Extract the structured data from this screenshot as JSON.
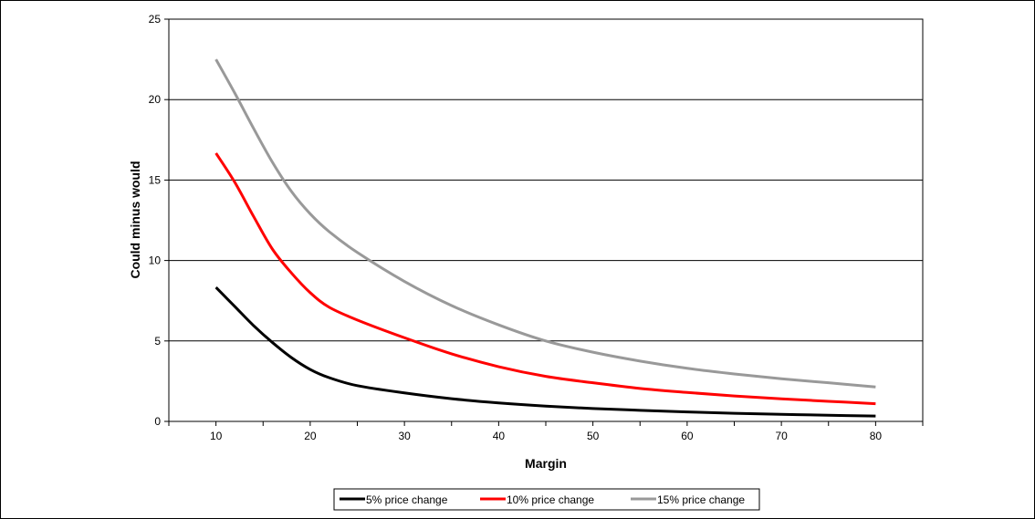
{
  "chart_data": {
    "type": "line",
    "title": "",
    "xlabel": "Margin",
    "ylabel": "Could minus would",
    "xlim": [
      5,
      85
    ],
    "ylim": [
      0,
      25
    ],
    "x_ticks": [
      10,
      20,
      30,
      40,
      50,
      60,
      70,
      80
    ],
    "y_ticks": [
      0,
      5,
      10,
      15,
      20,
      25
    ],
    "grid": "horizontal",
    "legend_position": "bottom",
    "series": [
      {
        "name": "5% price change",
        "color": "#000000",
        "x": [
          10,
          12,
          14,
          16,
          18,
          20,
          22,
          25,
          30,
          35,
          40,
          45,
          50,
          55,
          60,
          65,
          70,
          75,
          80
        ],
        "y": [
          8.33,
          7.14,
          5.95,
          4.9,
          3.97,
          3.23,
          2.72,
          2.22,
          1.77,
          1.41,
          1.15,
          0.95,
          0.8,
          0.69,
          0.59,
          0.5,
          0.44,
          0.38,
          0.33
        ]
      },
      {
        "name": "10% price change",
        "color": "#ff0000",
        "x": [
          10,
          12,
          14,
          16,
          18,
          20,
          22,
          25,
          30,
          35,
          40,
          45,
          50,
          55,
          60,
          65,
          70,
          75,
          80
        ],
        "y": [
          16.67,
          14.86,
          12.73,
          10.7,
          9.23,
          8.0,
          7.1,
          6.3,
          5.2,
          4.2,
          3.4,
          2.8,
          2.4,
          2.05,
          1.8,
          1.58,
          1.4,
          1.25,
          1.1
        ]
      },
      {
        "name": "15% price change",
        "color": "#999999",
        "x": [
          10,
          12,
          14,
          16,
          18,
          20,
          22,
          25,
          30,
          35,
          40,
          45,
          50,
          55,
          60,
          65,
          70,
          75,
          80
        ],
        "y": [
          22.5,
          20.4,
          18.2,
          16.1,
          14.3,
          12.9,
          11.8,
          10.5,
          8.7,
          7.2,
          6.0,
          5.0,
          4.3,
          3.75,
          3.3,
          2.95,
          2.65,
          2.4,
          2.14
        ]
      }
    ]
  }
}
